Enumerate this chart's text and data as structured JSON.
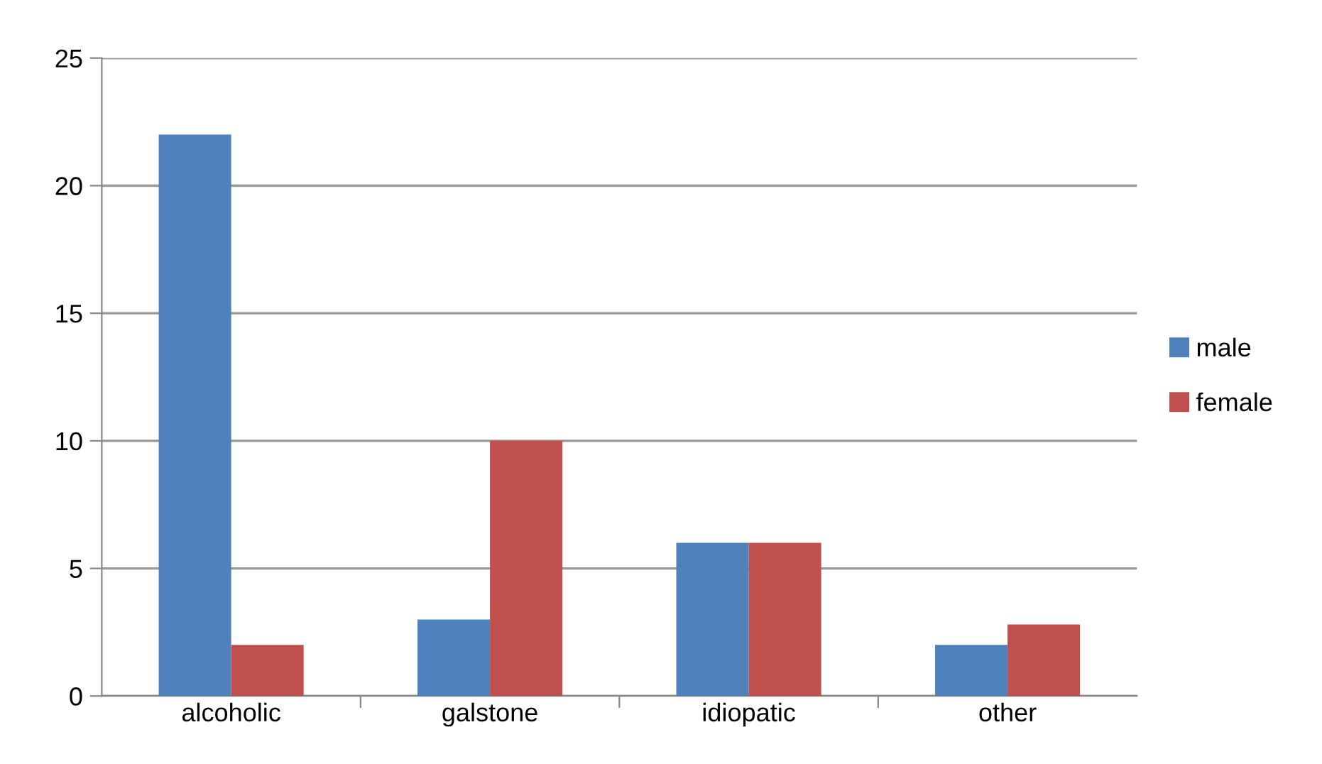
{
  "chart_data": {
    "type": "bar",
    "categories": [
      "alcoholic",
      "galstone",
      "idiopatic",
      "other"
    ],
    "series": [
      {
        "name": "male",
        "color": "#4f81bd",
        "values": [
          22,
          3,
          6,
          2
        ]
      },
      {
        "name": "female",
        "color": "#c0504d",
        "values": [
          2,
          10,
          6,
          2.8
        ]
      }
    ],
    "ylim": [
      0,
      25
    ],
    "yticks": [
      0,
      5,
      10,
      15,
      20,
      25
    ],
    "grid": "y",
    "legend": "right"
  }
}
